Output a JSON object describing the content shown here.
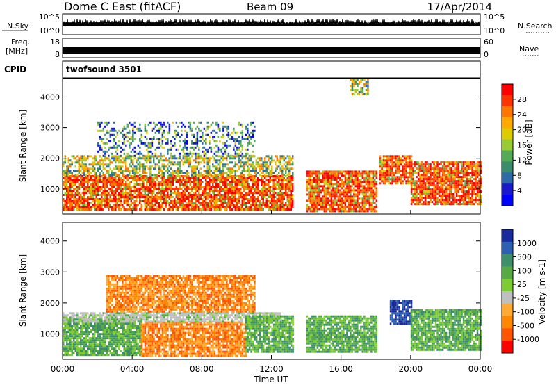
{
  "header": {
    "site": "Dome C East (fitACF)",
    "beam": "Beam 09",
    "date": "17/Apr/2014"
  },
  "top_strips": {
    "nsky_label": "N.Sky",
    "nsearch_label": "N.Search",
    "nsky_ticks": [
      "10^5",
      "10^0"
    ],
    "nsearch_ticks": [
      "10^5",
      "10^0"
    ],
    "freq_label_1": "Freq.",
    "freq_label_2": "[MHz]",
    "freq_ticks": [
      "18",
      "8"
    ],
    "nave_label": "Nave",
    "nave_ticks": [
      "60",
      "0"
    ],
    "cpid_label": "CPID",
    "cpid_value": "twofsound 3501"
  },
  "chart_data": [
    {
      "type": "heatmap",
      "panel": "power",
      "ylabel": "Slant Range [km]",
      "xlabel": "",
      "x_range_hours": [
        0,
        24
      ],
      "ylim_km": [
        180,
        4600
      ],
      "y_ticks": [
        1000,
        2000,
        3000,
        4000
      ],
      "colorbar": {
        "label": "Power [dB]",
        "ticks": [
          "28",
          "24",
          "20",
          "16",
          "12",
          "8",
          "4"
        ],
        "colors": [
          "#ff0000",
          "#ff3300",
          "#ff7700",
          "#ffaa00",
          "#ddcc00",
          "#99cc33",
          "#55aa55",
          "#3a8c6a",
          "#2f6aa8",
          "#1a1acc",
          "#0000ff"
        ]
      },
      "echo_regions": [
        {
          "t0": 0.0,
          "t1": 13.2,
          "r0": 300,
          "r1": 1450,
          "level": "high"
        },
        {
          "t0": 0.0,
          "t1": 13.2,
          "r0": 1450,
          "r1": 2100,
          "level": "mid"
        },
        {
          "t0": 2.0,
          "t1": 11.0,
          "r0": 2100,
          "r1": 3200,
          "level": "low"
        },
        {
          "t0": 14.0,
          "t1": 18.0,
          "r0": 300,
          "r1": 1600,
          "level": "high"
        },
        {
          "t0": 18.2,
          "t1": 20.0,
          "r0": 1200,
          "r1": 2100,
          "level": "high"
        },
        {
          "t0": 20.0,
          "t1": 24.0,
          "r0": 500,
          "r1": 1900,
          "level": "high"
        },
        {
          "t0": 16.5,
          "t1": 17.5,
          "r0": 4100,
          "r1": 4600,
          "level": "mid"
        }
      ]
    },
    {
      "type": "heatmap",
      "panel": "velocity",
      "ylabel": "Slant Range [km]",
      "xlabel": "Time UT",
      "x_range_hours": [
        0,
        24
      ],
      "ylim_km": [
        180,
        4600
      ],
      "y_ticks": [
        1000,
        2000,
        3000,
        4000
      ],
      "x_ticks": [
        "00:00",
        "04:00",
        "08:00",
        "12:00",
        "16:00",
        "20:00",
        "00:00"
      ],
      "colorbar": {
        "label": "Velocity [m s-1]",
        "ticks": [
          "1000",
          "500",
          "100",
          "25",
          "-25",
          "-100",
          "-500",
          "-1000"
        ],
        "colors": [
          "#1a2a9c",
          "#2f5fb3",
          "#3d8f6a",
          "#55aa44",
          "#7dcc33",
          "#bfbfbf",
          "#ffaa33",
          "#ff8800",
          "#ff5500",
          "#ff0000"
        ]
      },
      "echo_regions": [
        {
          "t0": 0.0,
          "t1": 4.5,
          "r0": 300,
          "r1": 1500,
          "level": "green"
        },
        {
          "t0": 4.5,
          "t1": 10.5,
          "r0": 300,
          "r1": 1400,
          "level": "orange"
        },
        {
          "t0": 0.0,
          "t1": 12.5,
          "r0": 1400,
          "r1": 1700,
          "level": "grey"
        },
        {
          "t0": 2.5,
          "t1": 11.0,
          "r0": 1700,
          "r1": 2900,
          "level": "orange"
        },
        {
          "t0": 10.5,
          "t1": 13.2,
          "r0": 400,
          "r1": 1600,
          "level": "green"
        },
        {
          "t0": 14.0,
          "t1": 18.0,
          "r0": 400,
          "r1": 1600,
          "level": "green"
        },
        {
          "t0": 18.8,
          "t1": 20.0,
          "r0": 1300,
          "r1": 2100,
          "level": "blue"
        },
        {
          "t0": 20.0,
          "t1": 24.0,
          "r0": 500,
          "r1": 1800,
          "level": "green"
        }
      ]
    }
  ]
}
